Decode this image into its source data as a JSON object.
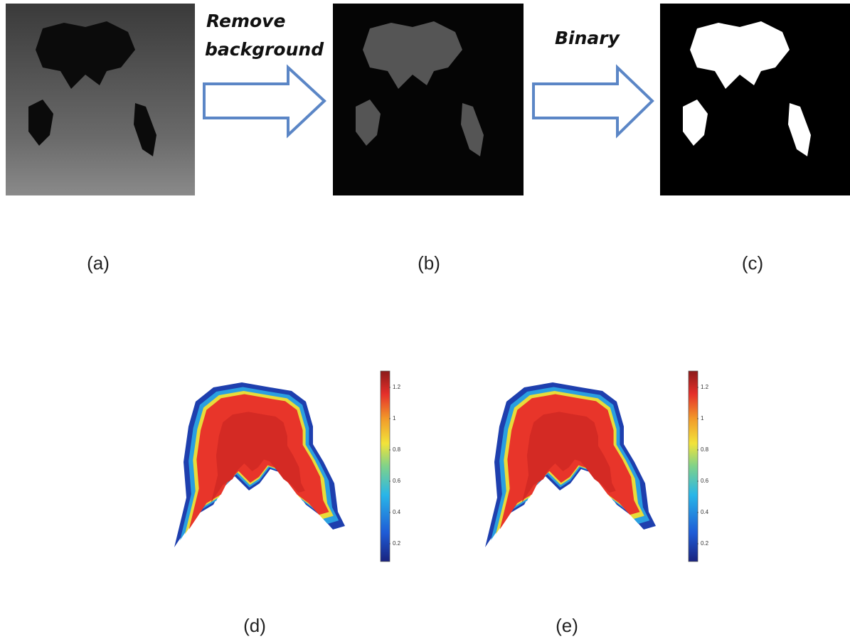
{
  "steps": {
    "remove_background": [
      "Remove",
      "background"
    ],
    "binary": "Binary"
  },
  "captions": [
    "(a)",
    "(b)",
    "(c)",
    "(d)",
    "(e)"
  ],
  "colorbars": [
    {
      "ticks": [
        1.2,
        1,
        0.8,
        0.6,
        0.4,
        0.2
      ]
    },
    {
      "ticks": [
        1.2,
        1,
        0.8,
        0.6,
        0.4,
        0.2
      ]
    }
  ]
}
